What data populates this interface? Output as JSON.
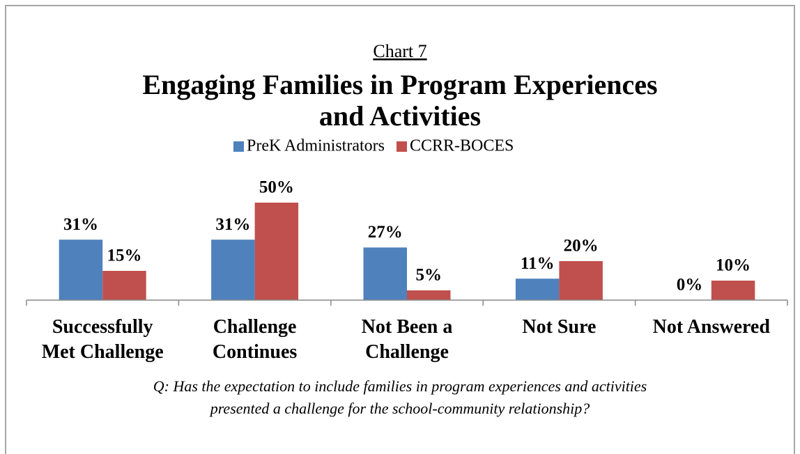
{
  "chart_data": {
    "type": "bar",
    "supertitle": "Chart 7",
    "title": [
      "Engaging Families in Program Experiences",
      "and Activities"
    ],
    "categories": [
      "Successfully\nMet Challenge",
      "Challenge\nContinues",
      "Not Been a\nChallenge",
      "Not Sure",
      "Not Answered"
    ],
    "series": [
      {
        "name": "PreK Administrators",
        "color": "#4f81bd",
        "values": [
          31,
          31,
          27,
          11,
          0
        ],
        "value_labels": [
          "31%",
          "31%",
          "27%",
          "11%",
          "0%"
        ]
      },
      {
        "name": "CCRR-BOCES",
        "color": "#c0504d",
        "values": [
          15,
          50,
          5,
          20,
          10
        ],
        "value_labels": [
          "15%",
          "50%",
          "5%",
          "20%",
          "10%"
        ]
      }
    ],
    "ylim": [
      0,
      50
    ],
    "legend": "top",
    "caption": [
      "Q: Has the  expectation to include families in program experiences and activities",
      "presented a challenge for the  school-community  relationship?"
    ]
  }
}
